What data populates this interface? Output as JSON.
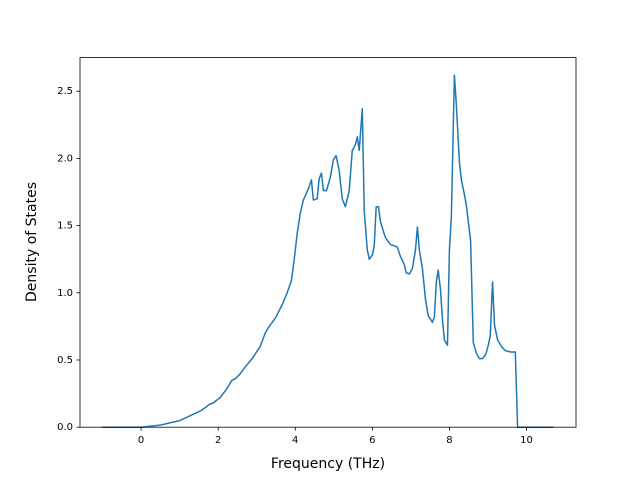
{
  "chart_data": {
    "type": "line",
    "xlabel": "Frequency (THz)",
    "ylabel": "Density of States",
    "color": "#1f77b4",
    "grid": false,
    "xlim": [
      -1.585,
      11.285
    ],
    "xticks": [
      0,
      2,
      4,
      6,
      8,
      10
    ],
    "ylim": [
      0,
      2.75
    ],
    "yticks": [
      {
        "value": 0,
        "label": "0.0"
      },
      0.5,
      {
        "value": 1,
        "label": "1.0"
      },
      1.5,
      {
        "value": 2,
        "label": "2.0"
      },
      2.5
    ],
    "x": [
      -1.01,
      0,
      0.49,
      1.01,
      1.53,
      1.69,
      1.77,
      1.87,
      2.05,
      2.21,
      2.36,
      2.44,
      2.55,
      2.68,
      2.88,
      3.09,
      3.22,
      3.3,
      3.48,
      3.66,
      3.79,
      3.9,
      3.97,
      4.05,
      4.13,
      4.21,
      4.29,
      4.36,
      4.42,
      4.47,
      4.57,
      4.62,
      4.68,
      4.73,
      4.81,
      4.91,
      4.99,
      5.06,
      5.14,
      5.22,
      5.3,
      5.4,
      5.48,
      5.56,
      5.61,
      5.66,
      5.74,
      5.79,
      5.87,
      5.92,
      6.0,
      6.05,
      6.1,
      6.16,
      6.21,
      6.34,
      6.47,
      6.65,
      6.73,
      6.83,
      6.88,
      6.96,
      7.04,
      7.12,
      7.17,
      7.22,
      7.3,
      7.38,
      7.45,
      7.56,
      7.61,
      7.66,
      7.71,
      7.77,
      7.82,
      7.87,
      7.95,
      8.0,
      8.05,
      8.13,
      8.18,
      8.26,
      8.31,
      8.39,
      8.44,
      8.55,
      8.57,
      8.62,
      8.7,
      8.78,
      8.86,
      8.94,
      9.01,
      9.06,
      9.12,
      9.17,
      9.25,
      9.35,
      9.45,
      9.58,
      9.71,
      9.77,
      10.7
    ],
    "values": [
      0,
      0,
      0.015,
      0.05,
      0.12,
      0.15,
      0.17,
      0.18,
      0.22,
      0.28,
      0.35,
      0.36,
      0.39,
      0.44,
      0.51,
      0.6,
      0.7,
      0.74,
      0.81,
      0.91,
      1.0,
      1.09,
      1.24,
      1.44,
      1.59,
      1.69,
      1.74,
      1.79,
      1.84,
      1.69,
      1.7,
      1.85,
      1.89,
      1.76,
      1.76,
      1.86,
      1.99,
      2.02,
      1.91,
      1.7,
      1.64,
      1.76,
      2.06,
      2.1,
      2.16,
      2.06,
      2.37,
      1.61,
      1.32,
      1.25,
      1.28,
      1.35,
      1.64,
      1.64,
      1.53,
      1.41,
      1.36,
      1.34,
      1.27,
      1.21,
      1.15,
      1.14,
      1.18,
      1.32,
      1.49,
      1.32,
      1.18,
      0.95,
      0.83,
      0.78,
      0.82,
      1.08,
      1.17,
      1.02,
      0.8,
      0.65,
      0.61,
      1.32,
      1.56,
      2.62,
      2.4,
      1.97,
      1.84,
      1.73,
      1.65,
      1.39,
      1.17,
      0.63,
      0.55,
      0.51,
      0.51,
      0.54,
      0.61,
      0.68,
      1.08,
      0.76,
      0.65,
      0.6,
      0.57,
      0.56,
      0.56,
      0,
      0
    ]
  }
}
